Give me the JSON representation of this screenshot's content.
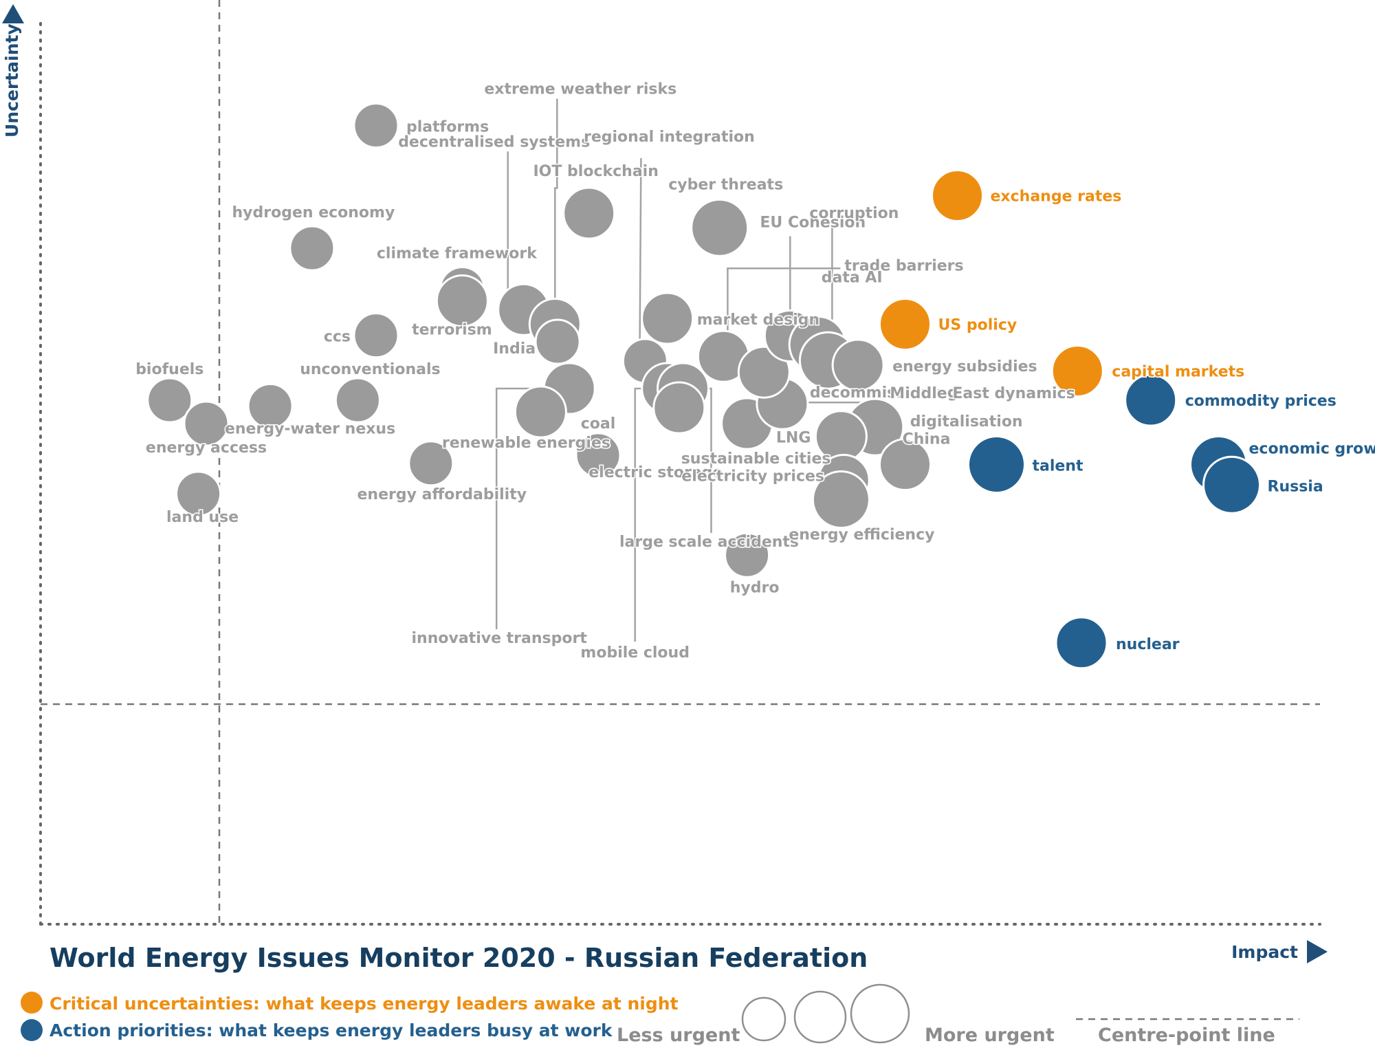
{
  "chart_data": {
    "type": "scatter",
    "title": "World Energy Issues Monitor 2020 - Russian Federation",
    "xlabel": "Impact",
    "ylabel": "Uncertainty",
    "colors": {
      "uncertainty": "#ee8e11",
      "priority": "#24608f",
      "other": "#9b9b9b",
      "other_label": "#9d9d9d",
      "axis": "#1f4e79"
    },
    "legend": [
      {
        "category": "uncertainty",
        "label": "Critical uncertainties: what keeps energy leaders awake at night"
      },
      {
        "category": "priority",
        "label": "Action priorities: what keeps energy leaders busy at work"
      }
    ],
    "size_legend": {
      "less": "Less urgent",
      "more": "More urgent",
      "centre": "Centre-point  line"
    },
    "points": [
      {
        "label": "platforms",
        "x": 0.12,
        "y": 0.99,
        "category": "other",
        "size": 2
      },
      {
        "label": "hydrogen economy",
        "x": 0.071,
        "y": 0.78,
        "category": "other",
        "size": 2
      },
      {
        "label": "ccs",
        "x": 0.12,
        "y": 0.631,
        "category": "other",
        "size": 2
      },
      {
        "label": "biofuels",
        "x": -0.038,
        "y": 0.52,
        "category": "other",
        "size": 2
      },
      {
        "label": "unconventionals",
        "x": 0.106,
        "y": 0.52,
        "category": "other",
        "size": 2
      },
      {
        "label": "energy-water nexus",
        "x": 0.039,
        "y": 0.51,
        "category": "other",
        "size": 2
      },
      {
        "label": "energy access",
        "x": -0.01,
        "y": 0.48,
        "category": "other",
        "size": 2
      },
      {
        "label": "land use",
        "x": -0.016,
        "y": 0.36,
        "category": "other",
        "size": 2
      },
      {
        "label": "climate framework",
        "x": 0.186,
        "y": 0.71,
        "category": "other",
        "size": 2
      },
      {
        "label": "terrorism",
        "x": 0.186,
        "y": 0.69,
        "category": "other",
        "size": 3
      },
      {
        "label": "decentralised systems",
        "x": 0.233,
        "y": 0.675,
        "category": "other",
        "size": 3
      },
      {
        "label": "extreme weather risks",
        "x": 0.257,
        "y": 0.65,
        "category": "other",
        "size": 3
      },
      {
        "label": "India",
        "x": 0.259,
        "y": 0.62,
        "category": "other",
        "size": 2
      },
      {
        "label": "IOT blockchain",
        "x": 0.283,
        "y": 0.84,
        "category": "other",
        "size": 3
      },
      {
        "label": "innovative transport",
        "x": 0.268,
        "y": 0.54,
        "category": "other",
        "size": 3
      },
      {
        "label": "renewable energies",
        "x": 0.246,
        "y": 0.5,
        "category": "other",
        "size": 3
      },
      {
        "label": "regional integration",
        "x": 0.326,
        "y": 0.587,
        "category": "other",
        "size": 2
      },
      {
        "label": "market design",
        "x": 0.343,
        "y": 0.66,
        "category": "other",
        "size": 3
      },
      {
        "label": "cyber threats",
        "x": 0.383,
        "y": 0.815,
        "category": "other",
        "size": 4
      },
      {
        "label": "mobile cloud",
        "x": 0.343,
        "y": 0.54,
        "category": "other",
        "size": 3
      },
      {
        "label": "large scale accidents",
        "x": 0.355,
        "y": 0.54,
        "category": "other",
        "size": 3
      },
      {
        "label": "electric storage",
        "x": 0.352,
        "y": 0.507,
        "category": "other",
        "size": 3
      },
      {
        "label": "trade barriers",
        "x": 0.386,
        "y": 0.595,
        "category": "other",
        "size": 3
      },
      {
        "label": "coal",
        "x": 0.29,
        "y": 0.426,
        "category": "other",
        "size": 2
      },
      {
        "label": "energy affordability",
        "x": 0.162,
        "y": 0.412,
        "category": "other",
        "size": 2
      },
      {
        "label": "sustainable cities",
        "x": 0.404,
        "y": 0.48,
        "category": "other",
        "size": 3
      },
      {
        "label": "decommissioning",
        "x": 0.431,
        "y": 0.514,
        "category": "other",
        "size": 3
      },
      {
        "label": "Middle East dynamics",
        "x": 0.417,
        "y": 0.568,
        "category": "other",
        "size": 3
      },
      {
        "label": "EU Cohesion",
        "x": 0.437,
        "y": 0.63,
        "category": "other",
        "size": 3
      },
      {
        "label": "data AI",
        "x": 0.458,
        "y": 0.615,
        "category": "other",
        "size": 4
      },
      {
        "label": "corruption",
        "x": 0.466,
        "y": 0.588,
        "category": "other",
        "size": 4
      },
      {
        "label": "energy subsidies",
        "x": 0.489,
        "y": 0.58,
        "category": "other",
        "size": 3
      },
      {
        "label": "digitalisation",
        "x": 0.502,
        "y": 0.474,
        "category": "other",
        "size": 4
      },
      {
        "label": "LNG",
        "x": 0.476,
        "y": 0.458,
        "category": "other",
        "size": 3
      },
      {
        "label": "electricity prices",
        "x": 0.478,
        "y": 0.383,
        "category": "other",
        "size": 3
      },
      {
        "label": "energy efficiency",
        "x": 0.476,
        "y": 0.35,
        "category": "other",
        "size": 4
      },
      {
        "label": "China",
        "x": 0.525,
        "y": 0.41,
        "category": "other",
        "size": 3
      },
      {
        "label": "hydro",
        "x": 0.404,
        "y": 0.255,
        "category": "other",
        "size": 2
      },
      {
        "label": "exchange rates",
        "x": 0.565,
        "y": 0.87,
        "category": "uncertainty",
        "size": 3
      },
      {
        "label": "US policy",
        "x": 0.525,
        "y": 0.65,
        "category": "uncertainty",
        "size": 3
      },
      {
        "label": "capital markets",
        "x": 0.657,
        "y": 0.57,
        "category": "uncertainty",
        "size": 3
      },
      {
        "label": "commodity prices",
        "x": 0.713,
        "y": 0.52,
        "category": "priority",
        "size": 3
      },
      {
        "label": "talent",
        "x": 0.595,
        "y": 0.41,
        "category": "priority",
        "size": 4
      },
      {
        "label": "economic growth",
        "x": 0.765,
        "y": 0.41,
        "category": "priority",
        "size": 4
      },
      {
        "label": "Russia",
        "x": 0.775,
        "y": 0.375,
        "category": "priority",
        "size": 4
      },
      {
        "label": "nuclear",
        "x": 0.66,
        "y": 0.105,
        "category": "priority",
        "size": 3
      }
    ]
  }
}
